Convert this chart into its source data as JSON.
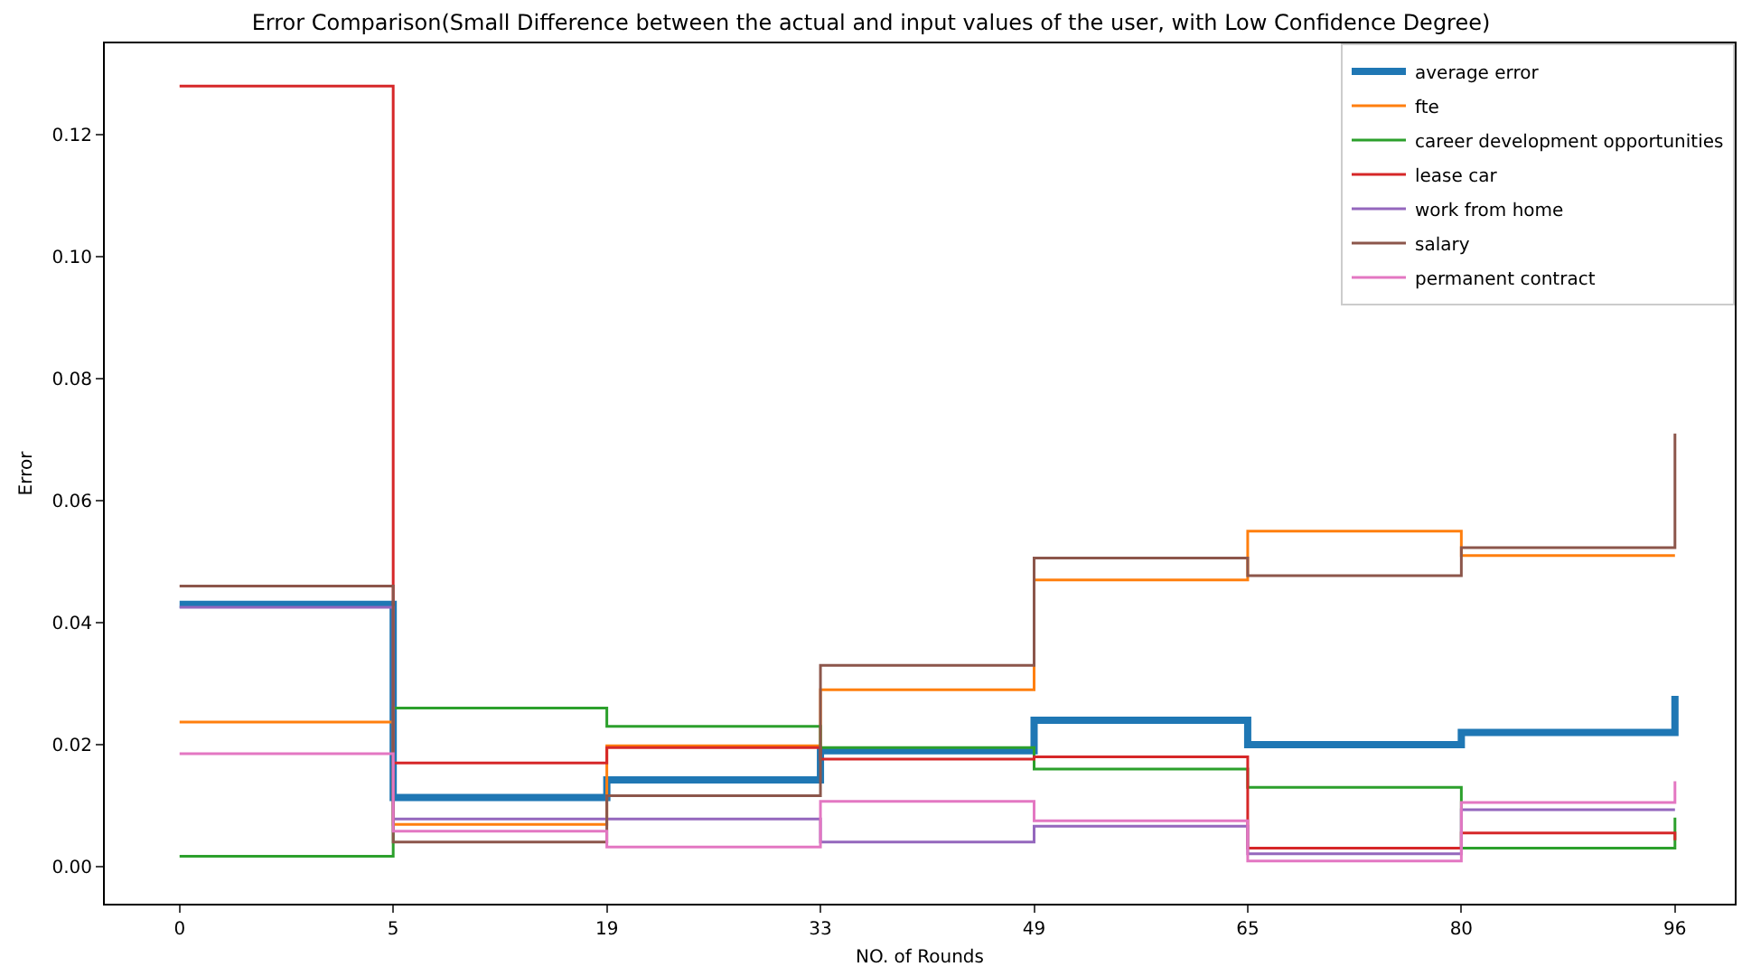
{
  "chart_data": {
    "type": "step",
    "title": "Error Comparison(Small Difference between the actual and input values of the user, with Low Confidence Degree)",
    "xlabel": "NO. of Rounds",
    "ylabel": "Error",
    "categories": [
      "0",
      "5",
      "19",
      "33",
      "49",
      "65",
      "80",
      "96"
    ],
    "series": [
      {
        "name": "average error",
        "color": "#1f77b4",
        "values": [
          0.043,
          0.0113,
          0.0142,
          0.019,
          0.024,
          0.02,
          0.022,
          0.028
        ]
      },
      {
        "name": "fte",
        "color": "#ff7f0e",
        "values": [
          0.0237,
          0.0069,
          0.0198,
          0.029,
          0.047,
          0.055,
          0.051,
          0.051
        ]
      },
      {
        "name": "career development opportunities",
        "color": "#2ca02c",
        "values": [
          0.0017,
          0.026,
          0.023,
          0.0195,
          0.016,
          0.013,
          0.003,
          0.008
        ]
      },
      {
        "name": "lease car",
        "color": "#d62728",
        "values": [
          0.128,
          0.017,
          0.0195,
          0.0176,
          0.018,
          0.003,
          0.0055,
          0.0043
        ]
      },
      {
        "name": "work from home",
        "color": "#9467bd",
        "values": [
          0.0425,
          0.0078,
          0.0078,
          0.004,
          0.0066,
          0.0021,
          0.0093,
          0.0093
        ]
      },
      {
        "name": "salary",
        "color": "#8c564b",
        "values": [
          0.046,
          0.004,
          0.0116,
          0.033,
          0.0506,
          0.0477,
          0.0523,
          0.071
        ]
      },
      {
        "name": "permanent contract",
        "color": "#e377c2",
        "values": [
          0.0185,
          0.0058,
          0.0032,
          0.0107,
          0.0075,
          0.0009,
          0.0105,
          0.014
        ]
      }
    ],
    "ylim": [
      -0.0061,
      0.135
    ],
    "yticks": [
      {
        "value": 0,
        "label": "0.00"
      },
      {
        "value": 0.02,
        "label": "0.02"
      },
      {
        "value": 0.04,
        "label": "0.04"
      },
      {
        "value": 0.06,
        "label": "0.06"
      },
      {
        "value": 0.08,
        "label": "0.08"
      },
      {
        "value": 0.1,
        "label": "0.10"
      },
      {
        "value": 0.12,
        "label": "0.12"
      }
    ],
    "grid": false,
    "legend": "top right",
    "line_style": "solid",
    "marker": "none"
  }
}
